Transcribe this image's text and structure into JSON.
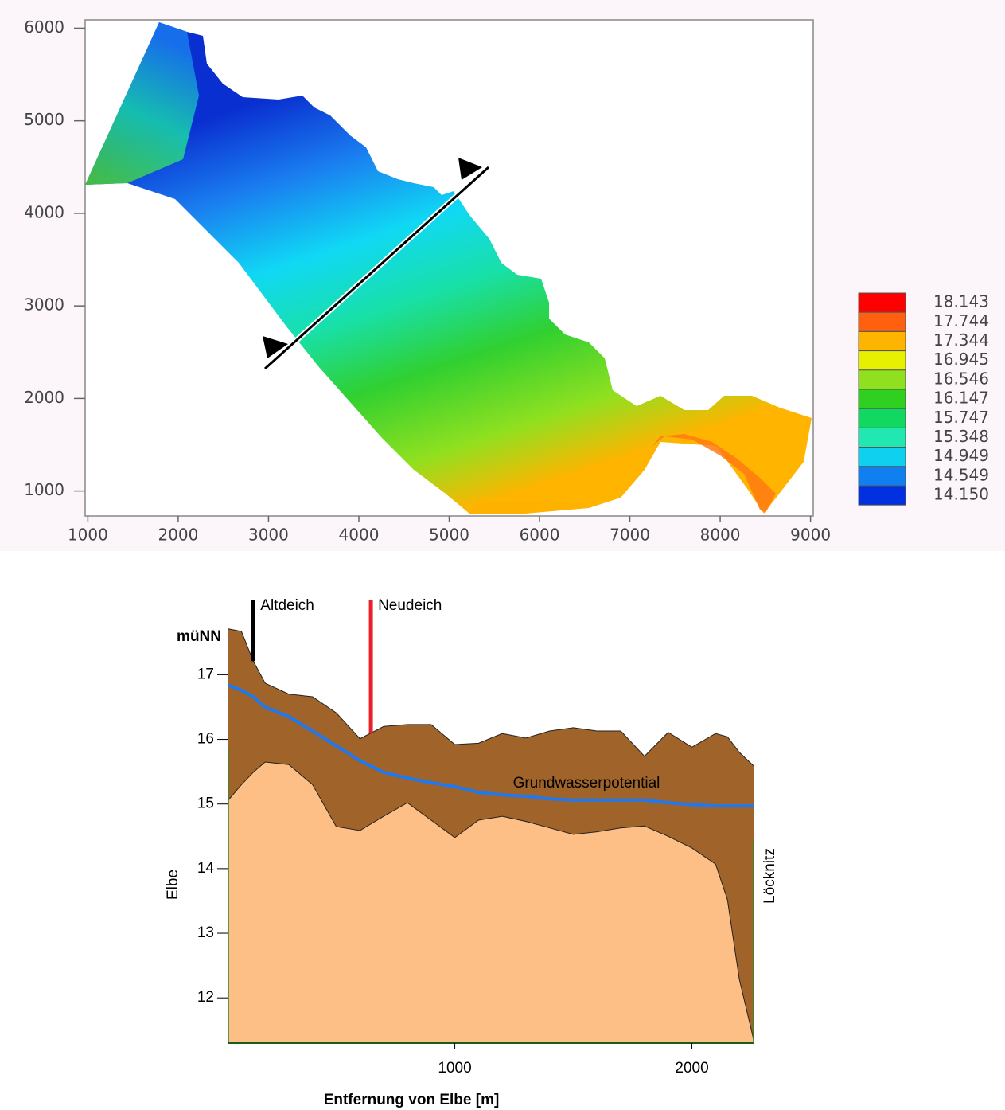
{
  "chart_data": [
    {
      "type": "contour",
      "xlim": [
        970,
        9030
      ],
      "ylim": [
        730,
        6090
      ],
      "xticks": [
        1000,
        2000,
        3000,
        4000,
        5000,
        6000,
        7000,
        8000,
        9000
      ],
      "yticks": [
        1000,
        2000,
        3000,
        4000,
        5000,
        6000
      ],
      "colorbar": {
        "levels": [
          18.143,
          17.744,
          17.344,
          16.945,
          16.546,
          16.147,
          15.747,
          15.348,
          14.949,
          14.549,
          {
            "value": 14.15,
            "label": "14.150"
          }
        ],
        "colors": [
          "#ff0000",
          "#ff6010",
          "#ffb400",
          "#e6f000",
          "#90e020",
          "#30d020",
          "#10d860",
          "#20e8b0",
          "#10d0f0",
          "#1080f0",
          "#0030e0"
        ]
      }
    },
    {
      "type": "area",
      "ylabel": "müNN",
      "xlabel": "Entfernung von Elbe [m]",
      "left_label": "Elbe",
      "right_label": "Löcknitz",
      "xlim": [
        45,
        2260
      ],
      "ylim": [
        11.3,
        18.2
      ],
      "xticks": [
        1000,
        2000
      ],
      "yticks": [
        12,
        13,
        14,
        15,
        16,
        17
      ],
      "x": [
        45,
        100,
        150,
        200,
        300,
        400,
        500,
        600,
        700,
        800,
        900,
        1000,
        1100,
        1200,
        1300,
        1400,
        1500,
        1600,
        1700,
        1800,
        1900,
        2000,
        2100,
        2150,
        2200,
        2260
      ],
      "series": [
        {
          "color": "#a0642a",
          "values": [
            17.71,
            17.67,
            17.21,
            16.87,
            16.7,
            16.66,
            16.41,
            16.01,
            16.2,
            16.23,
            16.23,
            15.92,
            15.94,
            16.09,
            16.02,
            16.13,
            16.18,
            16.13,
            16.13,
            15.74,
            16.11,
            15.88,
            16.09,
            16.04,
            15.8,
            15.59
          ]
        },
        {
          "name": "Grundwasserpotential",
          "color": "#1e78f0",
          "values": [
            16.84,
            16.76,
            16.66,
            16.5,
            16.35,
            16.13,
            15.9,
            15.67,
            15.49,
            15.4,
            15.33,
            15.27,
            15.18,
            15.14,
            15.12,
            15.08,
            15.06,
            15.06,
            15.06,
            15.06,
            15.02,
            14.99,
            14.97,
            14.97,
            14.97,
            14.97
          ]
        },
        {
          "color": "#fdbf86",
          "values": [
            15.06,
            15.3,
            15.49,
            15.65,
            15.61,
            15.3,
            14.65,
            14.59,
            14.81,
            15.02,
            14.75,
            14.48,
            14.75,
            14.81,
            14.73,
            14.63,
            14.53,
            14.57,
            14.63,
            14.66,
            14.5,
            14.32,
            14.07,
            13.52,
            12.29,
            11.36
          ]
        }
      ],
      "annotations": [
        {
          "text": "Altdeich",
          "x": 150,
          "color": "#000000"
        },
        {
          "text": "Neudeich",
          "x": 646,
          "color": "#e8202a"
        }
      ]
    }
  ]
}
